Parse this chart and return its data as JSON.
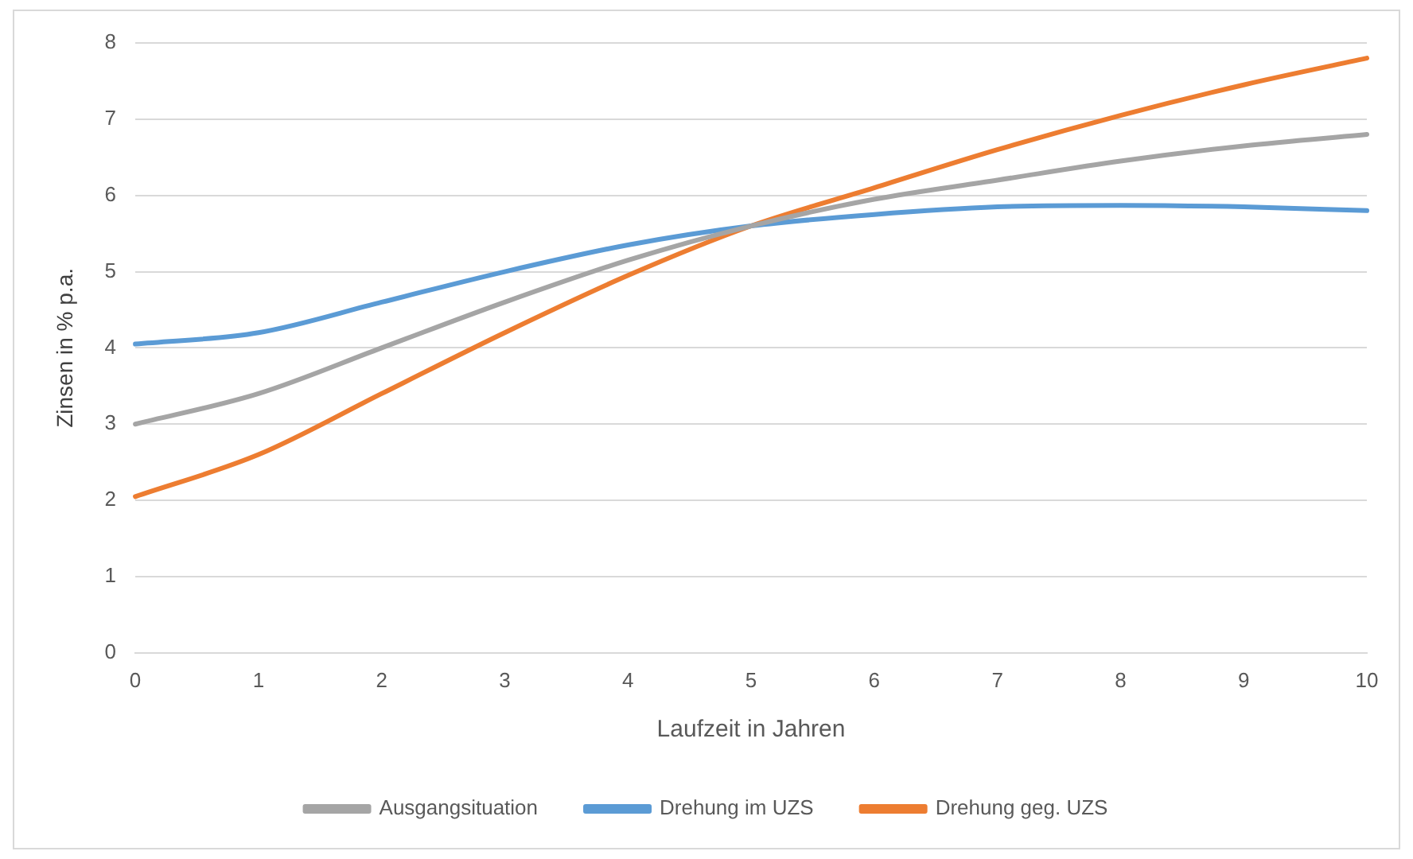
{
  "chart_data": {
    "type": "line",
    "xlabel": "Laufzeit in Jahren",
    "ylabel": "Zinsen in % p.a.",
    "categories": [
      "0",
      "1",
      "2",
      "3",
      "4",
      "5",
      "6",
      "7",
      "8",
      "9",
      "10"
    ],
    "series": [
      {
        "name": "Ausgangsituation",
        "color": "#a5a5a5",
        "values": [
          3.0,
          3.4,
          4.0,
          4.6,
          5.15,
          5.6,
          5.95,
          6.2,
          6.45,
          6.65,
          6.8
        ]
      },
      {
        "name": "Drehung im UZS",
        "color": "#5b9bd5",
        "values": [
          4.05,
          4.2,
          4.6,
          5.0,
          5.35,
          5.6,
          5.75,
          5.85,
          5.87,
          5.85,
          5.8
        ]
      },
      {
        "name": "Drehung geg. UZS",
        "color": "#ed7d31",
        "values": [
          2.05,
          2.6,
          3.4,
          4.2,
          4.95,
          5.6,
          6.1,
          6.6,
          7.05,
          7.45,
          7.8
        ]
      }
    ],
    "ylim": [
      0,
      8
    ],
    "yticks": [
      0,
      1,
      2,
      3,
      4,
      5,
      6,
      7,
      8
    ],
    "grid": "y",
    "legend": "bottom",
    "marker": "none",
    "line_style": "solid"
  }
}
